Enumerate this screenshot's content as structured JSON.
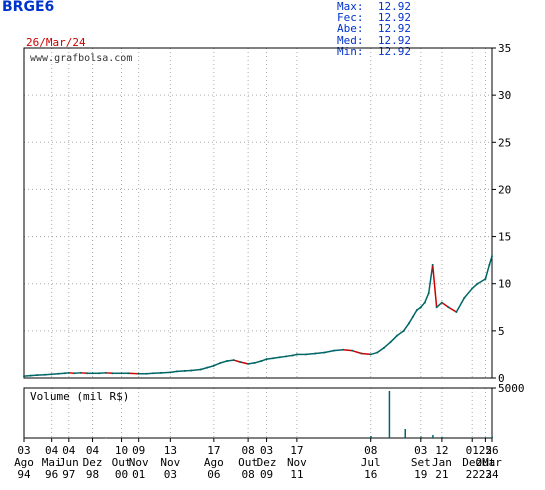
{
  "header": {
    "ticker": "BRGE6",
    "date": "26/Mar/24",
    "stats": [
      {
        "label": "Max:",
        "value": "12.92"
      },
      {
        "label": "Fec:",
        "value": "12.92"
      },
      {
        "label": "Abe:",
        "value": "12.92"
      },
      {
        "label": "Med:",
        "value": "12.92"
      },
      {
        "label": "Min:",
        "value": "12.92"
      }
    ]
  },
  "colors": {
    "up": "#006666",
    "down": "#cc0000",
    "accent": "#0033cc",
    "frame": "#000000",
    "grid": "#aaaaaa"
  },
  "chart_data": [
    {
      "type": "line",
      "site_label": "www.grafbolsa.com",
      "ylim": [
        0,
        35
      ],
      "yticks": [
        0,
        5,
        10,
        15,
        20,
        25,
        30,
        35
      ],
      "ytick_labels": [
        "0",
        "5",
        "10",
        "15",
        "20",
        "25",
        "30",
        "35"
      ],
      "grid": true,
      "xlim": [
        "1994-08",
        "2024-03"
      ],
      "x_tick_labels": [
        {
          "d": "1994-08",
          "top": "03",
          "mid": "Ago",
          "bot": "94"
        },
        {
          "d": "1996-05",
          "top": "04",
          "mid": "Mai",
          "bot": "96"
        },
        {
          "d": "1997-06",
          "top": "04",
          "mid": "Jun",
          "bot": "97"
        },
        {
          "d": "1998-12",
          "top": "04",
          "mid": "Dez",
          "bot": "98"
        },
        {
          "d": "2000-10",
          "top": "10",
          "mid": "Out",
          "bot": "00"
        },
        {
          "d": "2001-11",
          "top": "09",
          "mid": "Nov",
          "bot": "01"
        },
        {
          "d": "2003-11",
          "top": "13",
          "mid": "Nov",
          "bot": "03"
        },
        {
          "d": "2006-08",
          "top": "17",
          "mid": "Ago",
          "bot": "06"
        },
        {
          "d": "2008-10",
          "top": "08",
          "mid": "Out",
          "bot": "08"
        },
        {
          "d": "2009-12",
          "top": "03",
          "mid": "Dez",
          "bot": "09"
        },
        {
          "d": "2011-11",
          "top": "17",
          "mid": "Nov",
          "bot": "11"
        },
        {
          "d": "2016-07",
          "top": "08",
          "mid": "Jul",
          "bot": "16"
        },
        {
          "d": "2019-09",
          "top": "03",
          "mid": "Set",
          "bot": "19"
        },
        {
          "d": "2021-01",
          "top": "12",
          "mid": "Jan",
          "bot": "21"
        },
        {
          "d": "2022-12",
          "top": "01",
          "mid": "Dez",
          "bot": "22"
        },
        {
          "d": "2023-10",
          "top": "25",
          "mid": "Out",
          "bot": "23"
        },
        {
          "d": "2024-03",
          "top": "26",
          "mid": "Mar",
          "bot": "24"
        }
      ],
      "series": [
        {
          "values": [
            [
              "1994-08",
              0.2
            ],
            [
              "1995-01",
              0.25
            ],
            [
              "1995-06",
              0.3
            ],
            [
              "1995-12",
              0.35
            ],
            [
              "1996-05",
              0.4
            ],
            [
              "1996-10",
              0.45
            ],
            [
              "1997-03",
              0.5
            ],
            [
              "1997-06",
              0.55
            ],
            [
              "1997-10",
              0.5
            ],
            [
              "1998-03",
              0.55
            ],
            [
              "1998-08",
              0.5
            ],
            [
              "1998-12",
              0.5
            ],
            [
              "1999-05",
              0.5
            ],
            [
              "1999-10",
              0.55
            ],
            [
              "2000-03",
              0.5
            ],
            [
              "2000-10",
              0.5
            ],
            [
              "2001-03",
              0.5
            ],
            [
              "2001-11",
              0.45
            ],
            [
              "2002-05",
              0.45
            ],
            [
              "2002-10",
              0.5
            ],
            [
              "2003-04",
              0.55
            ],
            [
              "2003-11",
              0.6
            ],
            [
              "2004-04",
              0.7
            ],
            [
              "2004-10",
              0.75
            ],
            [
              "2005-03",
              0.8
            ],
            [
              "2005-10",
              0.9
            ],
            [
              "2006-03",
              1.1
            ],
            [
              "2006-08",
              1.3
            ],
            [
              "2007-01",
              1.6
            ],
            [
              "2007-06",
              1.8
            ],
            [
              "2007-11",
              1.9
            ],
            [
              "2008-04",
              1.7
            ],
            [
              "2008-10",
              1.5
            ],
            [
              "2009-03",
              1.6
            ],
            [
              "2009-08",
              1.8
            ],
            [
              "2009-12",
              2.0
            ],
            [
              "2010-05",
              2.1
            ],
            [
              "2010-10",
              2.2
            ],
            [
              "2011-03",
              2.3
            ],
            [
              "2011-08",
              2.4
            ],
            [
              "2011-11",
              2.5
            ],
            [
              "2012-06",
              2.5
            ],
            [
              "2013-01",
              2.6
            ],
            [
              "2013-08",
              2.7
            ],
            [
              "2014-03",
              2.9
            ],
            [
              "2014-10",
              3.0
            ],
            [
              "2015-05",
              2.9
            ],
            [
              "2015-12",
              2.6
            ],
            [
              "2016-07",
              2.5
            ],
            [
              "2016-12",
              2.7
            ],
            [
              "2017-05",
              3.2
            ],
            [
              "2017-10",
              3.8
            ],
            [
              "2018-03",
              4.5
            ],
            [
              "2018-08",
              5.0
            ],
            [
              "2018-12",
              5.8
            ],
            [
              "2019-03",
              6.5
            ],
            [
              "2019-06",
              7.2
            ],
            [
              "2019-09",
              7.5
            ],
            [
              "2019-12",
              8.0
            ],
            [
              "2020-03",
              9.0
            ],
            [
              "2020-06",
              12.0
            ],
            [
              "2020-09",
              7.5
            ],
            [
              "2021-01",
              8.0
            ],
            [
              "2021-06",
              7.5
            ],
            [
              "2021-12",
              7.0
            ],
            [
              "2022-06",
              8.5
            ],
            [
              "2022-12",
              9.5
            ],
            [
              "2023-04",
              10.0
            ],
            [
              "2023-10",
              10.5
            ],
            [
              "2024-01",
              12.0
            ],
            [
              "2024-03",
              12.92
            ]
          ]
        }
      ]
    },
    {
      "type": "bar",
      "title": "Volume (mil R$)",
      "ylim": [
        0,
        5000
      ],
      "yticks": [
        5000
      ],
      "ytick_labels": [
        "5000"
      ],
      "values": [
        [
          "1994-08",
          20
        ],
        [
          "1996-05",
          10
        ],
        [
          "1997-06",
          10
        ],
        [
          "1999-10",
          5
        ],
        [
          "2001-11",
          5
        ],
        [
          "2003-11",
          10
        ],
        [
          "2006-08",
          20
        ],
        [
          "2008-10",
          15
        ],
        [
          "2011-11",
          30
        ],
        [
          "2016-07",
          200
        ],
        [
          "2017-09",
          4700
        ],
        [
          "2018-09",
          900
        ],
        [
          "2019-09",
          150
        ],
        [
          "2020-06",
          300
        ],
        [
          "2021-01",
          100
        ],
        [
          "2022-12",
          60
        ],
        [
          "2023-10",
          80
        ],
        [
          "2024-03",
          120
        ]
      ]
    }
  ]
}
